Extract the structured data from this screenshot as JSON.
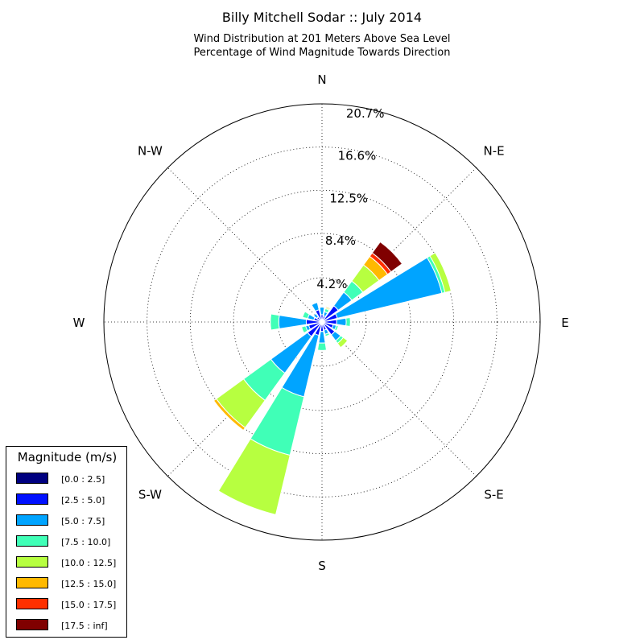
{
  "chart_data": {
    "type": "windrose",
    "title": "Billy Mitchell Sodar :: July 2014",
    "subtitle_lines": [
      "Wind Distribution at 201 Meters Above Sea Level",
      "Percentage of Wind Magnitude Towards Direction"
    ],
    "direction_labels": [
      "N",
      "N-E",
      "E",
      "S-E",
      "S",
      "S-W",
      "W",
      "N-W"
    ],
    "radial_ticks": [
      4.2,
      8.4,
      12.5,
      16.6,
      20.7
    ],
    "radial_tick_labels": [
      "4.2%",
      "8.4%",
      "12.5%",
      "16.6%",
      "20.7%"
    ],
    "rmax": 20.7,
    "unit": "%",
    "bins": [
      "[0.0 : 2.5]",
      "[2.5 : 5.0]",
      "[5.0 : 7.5]",
      "[7.5 : 10.0]",
      "[10.0 : 12.5]",
      "[12.5 : 15.0]",
      "[15.0 : 17.5]",
      "[17.5 : inf]"
    ],
    "bin_colors": [
      "#000080",
      "#0010ff",
      "#00a4ff",
      "#40ffb7",
      "#b7ff40",
      "#ffb900",
      "#ff3000",
      "#800000"
    ],
    "legend_title": "Magnitude (m/s)",
    "series": [
      {
        "direction": 0,
        "values": [
          0.1,
          0.6,
          0.7,
          0.0,
          0.0,
          0.0,
          0.0,
          0.0
        ]
      },
      {
        "direction": 22.5,
        "values": [
          0.1,
          0.5,
          0.4,
          0.3,
          0.1,
          0.1,
          0.0,
          0.0
        ]
      },
      {
        "direction": 45,
        "values": [
          0.1,
          1.8,
          1.6,
          1.3,
          1.9,
          1.0,
          0.4,
          1.3
        ]
      },
      {
        "direction": 67.5,
        "values": [
          0.1,
          1.4,
          10.2,
          0.3,
          0.6,
          0.0,
          0.0,
          0.0
        ]
      },
      {
        "direction": 90,
        "values": [
          0.1,
          1.3,
          0.9,
          0.4,
          0.0,
          0.0,
          0.0,
          0.0
        ]
      },
      {
        "direction": 112.5,
        "values": [
          0.1,
          1.0,
          0.3,
          0.2,
          0.0,
          0.0,
          0.0,
          0.0
        ]
      },
      {
        "direction": 135,
        "values": [
          0.1,
          1.4,
          0.7,
          0.3,
          0.5,
          0.0,
          0.0,
          0.0
        ]
      },
      {
        "direction": 157.5,
        "values": [
          0.1,
          0.7,
          0.4,
          0.2,
          0.0,
          0.0,
          0.0,
          0.0
        ]
      },
      {
        "direction": 180,
        "values": [
          0.1,
          0.8,
          1.1,
          0.7,
          0.0,
          0.0,
          0.0,
          0.0
        ]
      },
      {
        "direction": 202.5,
        "values": [
          0.1,
          1.2,
          6.0,
          5.7,
          5.8,
          0.0,
          0.0,
          0.0
        ]
      },
      {
        "direction": 225,
        "values": [
          0.1,
          1.6,
          4.3,
          3.2,
          3.2,
          0.3,
          0.0,
          0.0
        ]
      },
      {
        "direction": 247.5,
        "values": [
          0.1,
          1.2,
          0.3,
          0.4,
          0.0,
          0.0,
          0.0,
          0.0
        ]
      },
      {
        "direction": 270,
        "values": [
          0.1,
          1.4,
          2.6,
          0.8,
          0.0,
          0.0,
          0.0,
          0.0
        ]
      },
      {
        "direction": 292.5,
        "values": [
          0.1,
          0.7,
          0.6,
          0.5,
          0.0,
          0.0,
          0.0,
          0.0
        ]
      },
      {
        "direction": 315,
        "values": [
          0.1,
          0.5,
          0.4,
          0.0,
          0.0,
          0.0,
          0.0,
          0.0
        ]
      },
      {
        "direction": 337.5,
        "values": [
          0.1,
          1.1,
          0.7,
          0.0,
          0.0,
          0.0,
          0.0,
          0.0
        ]
      }
    ]
  }
}
